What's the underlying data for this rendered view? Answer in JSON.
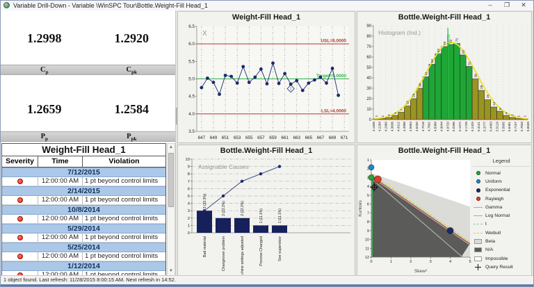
{
  "window": {
    "title": "Variable Drill-Down - Variable \\WinSPC Tour\\Bottle.Weight-Fill Head_1",
    "controls": {
      "minimize": "–",
      "restore": "❐",
      "close": "✕"
    }
  },
  "status_bar": {
    "text": "1 object found.  Last refresh: 11/28/2015 8:00:15 AM.  Next refresh in 14:52."
  },
  "scrollbar": {
    "up": "▲",
    "down": "▼"
  },
  "capability": {
    "cp": {
      "base": "C",
      "sub": "p",
      "value": "1.2998"
    },
    "cpk": {
      "base": "C",
      "sub": "pk",
      "value": "1.2920"
    },
    "pp": {
      "base": "P",
      "sub": "p",
      "value": "1.2659"
    },
    "ppk": {
      "base": "P",
      "sub": "pk",
      "value": "1.2584"
    }
  },
  "violations": {
    "title": "Weight-Fill Head_1",
    "columns": [
      "Severity",
      "Time",
      "Violation"
    ],
    "groups": [
      {
        "date": "7/12/2015",
        "rows": [
          {
            "time": "12:00:00 AM",
            "violation": "1 pt beyond control limits"
          }
        ]
      },
      {
        "date": "2/14/2015",
        "rows": [
          {
            "time": "12:00:00 AM",
            "violation": "1 pt beyond control limits"
          }
        ]
      },
      {
        "date": "10/8/2014",
        "rows": [
          {
            "time": "12:00:00 AM",
            "violation": "1 pt beyond control limits"
          }
        ]
      },
      {
        "date": "5/29/2014",
        "rows": [
          {
            "time": "12:00:00 AM",
            "violation": "1 pt beyond control limits"
          }
        ]
      },
      {
        "date": "5/25/2014",
        "rows": [
          {
            "time": "12:00:00 AM",
            "violation": "1 pt beyond control limits"
          }
        ]
      },
      {
        "date": "1/12/2014",
        "rows": [
          {
            "time": "12:00:00 AM",
            "violation": "1 pt beyond control limits"
          }
        ]
      }
    ]
  },
  "chart_data": [
    {
      "type": "line",
      "title": "Weight-Fill Head_1",
      "corner_label": "X",
      "x": [
        647,
        648,
        649,
        650,
        651,
        652,
        653,
        654,
        655,
        656,
        657,
        658,
        659,
        660,
        661,
        662,
        663,
        664,
        665,
        666,
        667,
        668,
        669,
        670
      ],
      "values": [
        4.75,
        5.02,
        4.9,
        4.56,
        5.1,
        5.07,
        4.88,
        5.35,
        4.9,
        5.05,
        5.28,
        4.86,
        5.45,
        4.87,
        5.15,
        4.85,
        4.95,
        4.67,
        4.88,
        4.97,
        5.05,
        4.88,
        5.3,
        4.53
      ],
      "xticks": [
        647,
        649,
        651,
        653,
        655,
        657,
        659,
        661,
        663,
        665,
        667,
        669,
        671
      ],
      "yticks": [
        3.5,
        4.0,
        4.5,
        5.0,
        5.5,
        6.0,
        6.5
      ],
      "ylim": [
        3.5,
        6.5
      ],
      "xlim": [
        646.2,
        671.8
      ],
      "lines": [
        {
          "label": "USL=6.0000",
          "value": 6.0,
          "color": "#b23a2a"
        },
        {
          "label": "Target=5.0000",
          "value": 5.0,
          "color": "#2db34a"
        },
        {
          "label": "LSL=4.0000",
          "value": 4.0,
          "color": "#b23a2a"
        }
      ],
      "annotation": {
        "x": 662,
        "y": 4.72,
        "label": "1"
      },
      "point_color": "#1b2a6b"
    },
    {
      "type": "bar",
      "title": "Bottle.Weight-Fill Head_1",
      "corner_label": "Histogram (Ind.)",
      "bin_labels": [
        "4.1608",
        "4.2284",
        "4.2960",
        "4.3636",
        "4.4312",
        "4.4988",
        "4.5664",
        "4.6340",
        "4.7016",
        "4.7692",
        "4.8368",
        "4.9044",
        "4.9720",
        "5.0396",
        "5.1072",
        "5.1749",
        "5.2425",
        "5.3101",
        "5.3777",
        "5.4453",
        "5.5129",
        "5.5805",
        "5.6481",
        "5.7157",
        "5.7833",
        "5.8509"
      ],
      "values": [
        1,
        1,
        2,
        4,
        7,
        13,
        20,
        30,
        41,
        53,
        63,
        70,
        72,
        73,
        62,
        51,
        39,
        28,
        19,
        12,
        8,
        4,
        2,
        1,
        1
      ],
      "yticks": [
        0,
        10,
        20,
        30,
        40,
        50,
        60,
        70,
        80,
        90
      ],
      "ylim": [
        0,
        90
      ],
      "mean_label": "X=4.9720",
      "bar_color": "#1fa637",
      "tail_color": "#9a9422",
      "curve_color": "#ecdf2e",
      "mean_line_color": "#2ec84a"
    },
    {
      "type": "pareto",
      "title": "Bottle.Weight-Fill Head_1",
      "corner_label": "Assignable Causes",
      "categories": [
        "Bad material",
        "Changeover problem",
        "Machine settings adjusted",
        "Process Changed",
        "See supervisor"
      ],
      "values": [
        3,
        2,
        2,
        1,
        1
      ],
      "bar_labels": [
        "3 (33.3%)",
        "2 (22.2%)",
        "2 (22.2%)",
        "1 (11.1%)",
        "1 (11.1%)"
      ],
      "cumulative": [
        3,
        5,
        7,
        8,
        9
      ],
      "yticks": [
        0,
        1,
        2,
        3,
        4,
        5,
        6,
        7,
        8,
        9,
        10
      ],
      "ylim": [
        0,
        10
      ],
      "bar_color": "#16215c"
    },
    {
      "type": "scatter",
      "title": "Bottle.Weight-Fill Head_1",
      "xlabel": "Skew²",
      "ylabel": "Kurtosis",
      "xticks": [
        0,
        1,
        2,
        3,
        4,
        5
      ],
      "yticks": [
        1,
        2,
        3,
        4,
        5,
        6,
        7,
        8,
        9,
        10,
        11,
        12
      ],
      "xlim": [
        0,
        5
      ],
      "ylim": [
        1,
        12
      ],
      "regions": {
        "impossible_color": "#ffffff",
        "beta_color": "#dbdbd8",
        "na_color": "#5b5b59",
        "beta_poly": [
          [
            0,
            2.5
          ],
          [
            5,
            6.3
          ],
          [
            5,
            12
          ],
          [
            0,
            12
          ]
        ],
        "na_poly": [
          [
            0,
            2.78
          ],
          [
            5,
            10.45
          ],
          [
            4.55,
            12
          ],
          [
            0,
            12
          ]
        ]
      },
      "dist_lines": [
        {
          "name": "Weibull",
          "from": [
            0,
            2.6
          ],
          "to": [
            5,
            10.3
          ],
          "color": "#d6d23e",
          "dash": "4 2"
        },
        {
          "name": "Gamma",
          "from": [
            0,
            2.92
          ],
          "to": [
            5,
            10.62
          ],
          "color": "#e8938f",
          "dash": ""
        },
        {
          "name": "Log Normal",
          "from": [
            0,
            3.1
          ],
          "to": [
            4.62,
            12
          ],
          "color": "#a8a8a4",
          "dash": ""
        },
        {
          "name": "t",
          "from": [
            0.04,
            2.8
          ],
          "to": [
            0.04,
            12
          ],
          "color": "#2ecc52",
          "dash": ""
        }
      ],
      "markers": [
        {
          "name": "Uniform",
          "x": 0,
          "y": 1.85,
          "r": 4,
          "color": "#1f86c8"
        },
        {
          "name": "Normal",
          "x": 0,
          "y": 3.0,
          "r": 4,
          "color": "#23a836"
        },
        {
          "name": "Rayleigh",
          "x": 0.33,
          "y": 3.2,
          "r": 5,
          "color": "#e23b23"
        },
        {
          "name": "Exponential",
          "x": 4.0,
          "y": 9.0,
          "r": 4.5,
          "color": "#1b2a6b"
        },
        {
          "name": "Query Result",
          "x": 0.15,
          "y": 4.1,
          "r": 3.5,
          "crosshair": true
        }
      ],
      "legend": {
        "title": "Legend",
        "items": [
          {
            "label": "Normal",
            "swatch": "dot",
            "color": "#23a836"
          },
          {
            "label": "Uniform",
            "swatch": "dot",
            "color": "#1f86c8"
          },
          {
            "label": "Exponential",
            "swatch": "dot",
            "color": "#1b2a6b"
          },
          {
            "label": "Rayleigh",
            "swatch": "dot",
            "color": "#e23b23"
          },
          {
            "label": "Gamma",
            "swatch": "line",
            "color": "#e8938f"
          },
          {
            "label": "Log Normal",
            "swatch": "line",
            "color": "#a8a8a4"
          },
          {
            "label": "t",
            "swatch": "dashed",
            "color": "#7fd49a"
          },
          {
            "label": "Weibull",
            "swatch": "dashed",
            "color": "#d6d23e"
          },
          {
            "label": "Beta",
            "swatch": "box",
            "color": "#dbdbd8"
          },
          {
            "label": "N/A",
            "swatch": "box",
            "color": "#5b5b59"
          },
          {
            "label": "Impossible",
            "swatch": "box",
            "color": "#ffffff"
          },
          {
            "label": "Query Result",
            "swatch": "cross",
            "color": "#111111"
          }
        ]
      }
    }
  ]
}
